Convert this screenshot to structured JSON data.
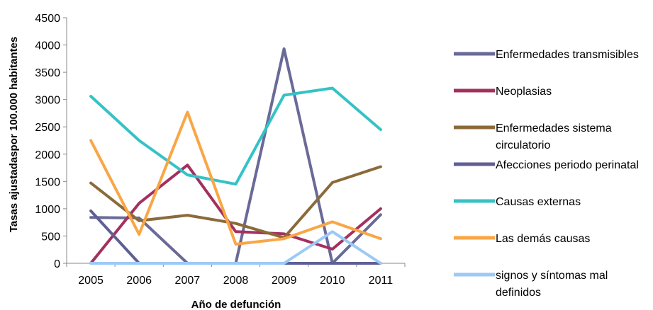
{
  "chart_data": {
    "type": "line",
    "title": "",
    "xlabel": "Año de defunción",
    "ylabel": "Tasas ajustadaspor 100.000 habitantes",
    "categories": [
      "2005",
      "2006",
      "2007",
      "2008",
      "2009",
      "2010",
      "2011"
    ],
    "ylim": [
      0,
      4500
    ],
    "yticks": [
      0,
      500,
      1000,
      1500,
      2000,
      2500,
      3000,
      3500,
      4000,
      4500
    ],
    "grid": false,
    "legend_position": "right",
    "series": [
      {
        "name": "Enfermedades transmisibles",
        "color": "#6a6a98",
        "values": [
          840,
          830,
          0,
          0,
          3930,
          0,
          890
        ]
      },
      {
        "name": "Neoplasias",
        "color": "#a3305f",
        "values": [
          0,
          1100,
          1800,
          580,
          540,
          260,
          1000
        ]
      },
      {
        "name": "Enfermedades sistema circulatorio",
        "label_lines": [
          "Enfermedades sistema",
          "circulatorio"
        ],
        "color": "#8b6a3a",
        "values": [
          1470,
          780,
          880,
          730,
          470,
          1480,
          1770
        ]
      },
      {
        "name": "Afecciones periodo perinatal",
        "color": "#5f5f96",
        "values": [
          960,
          0,
          0,
          0,
          0,
          0,
          0
        ]
      },
      {
        "name": "Causas externas",
        "color": "#35c2c6",
        "values": [
          3060,
          2250,
          1620,
          1450,
          3080,
          3210,
          2450
        ]
      },
      {
        "name": "Las demás causas",
        "color": "#f9a646",
        "values": [
          2250,
          530,
          2770,
          350,
          450,
          760,
          450
        ]
      },
      {
        "name": "signos y síntomas mal definidos",
        "label_lines": [
          "signos y síntomas mal",
          "definidos"
        ],
        "color": "#9ccaf6",
        "values": [
          0,
          0,
          0,
          0,
          0,
          580,
          0
        ]
      }
    ]
  }
}
